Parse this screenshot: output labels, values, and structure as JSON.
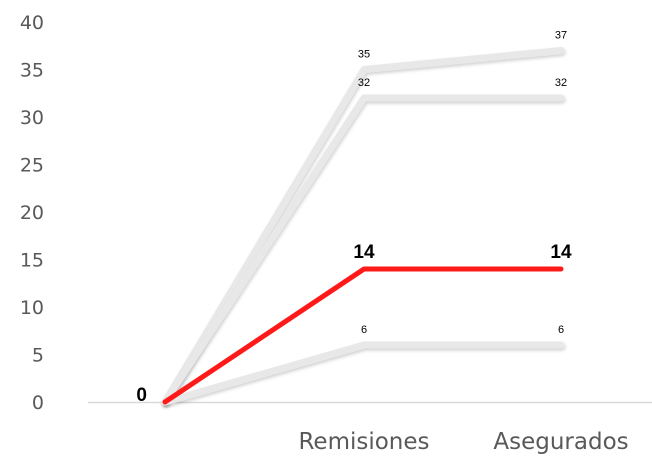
{
  "chart_data": {
    "type": "line",
    "title": "",
    "xlabel": "",
    "ylabel": "",
    "categories": [
      "",
      "Remisiones",
      "Asegurados"
    ],
    "ylim": [
      0,
      40
    ],
    "yticks": [
      0,
      5,
      10,
      15,
      20,
      25,
      30,
      35,
      40
    ],
    "grid": false,
    "legend": "none",
    "series": [
      {
        "values": [
          0,
          35,
          37
        ],
        "labels": [
          "",
          "35",
          "37"
        ],
        "color": "#e8e8e8",
        "highlight": false
      },
      {
        "values": [
          0,
          32,
          32
        ],
        "labels": [
          "",
          "32",
          "32"
        ],
        "color": "#e8e8e8",
        "highlight": false
      },
      {
        "values": [
          0,
          6,
          6
        ],
        "labels": [
          "",
          "6",
          "6"
        ],
        "color": "#e8e8e8",
        "highlight": false
      },
      {
        "values": [
          0,
          14,
          14
        ],
        "labels": [
          "0",
          "14",
          "14"
        ],
        "color": "#ff1a1a",
        "highlight": true
      }
    ]
  }
}
